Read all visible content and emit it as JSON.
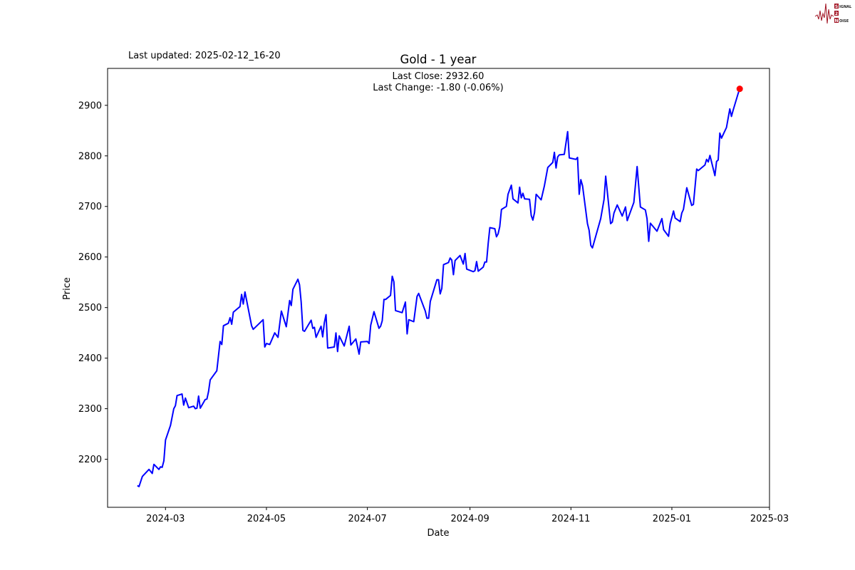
{
  "header": {
    "last_updated": "Last updated: 2025-02-12_16-20",
    "logo_text": "Signal 2 Noise"
  },
  "chart_data": {
    "type": "line",
    "title": "Gold - 1 year",
    "xlabel": "Date",
    "ylabel": "Price",
    "annotations": [
      "Last Close: 2932.60",
      "Last Change: -1.80 (-0.06%)"
    ],
    "xlim": [
      "2024-01-26",
      "2025-03-01"
    ],
    "ylim": [
      2105,
      2973
    ],
    "x_ticks": [
      "2024-03-01",
      "2024-05-01",
      "2024-07-01",
      "2024-09-01",
      "2024-11-01",
      "2025-01-01",
      "2025-03-01"
    ],
    "x_tick_labels": [
      "2024-03",
      "2024-05",
      "2024-07",
      "2024-09",
      "2024-11",
      "2025-01",
      "2025-03"
    ],
    "y_ticks": [
      2200,
      2300,
      2400,
      2500,
      2600,
      2700,
      2800,
      2900
    ],
    "y_tick_labels": [
      "2200",
      "2300",
      "2400",
      "2500",
      "2600",
      "2700",
      "2800",
      "2900"
    ],
    "grid": false,
    "line_color": "#0000ff",
    "marker_color": "#ff0000",
    "last_point": {
      "x": "2025-02-11",
      "y": 2932.6
    },
    "x": [
      "2024-02-13",
      "2024-02-14",
      "2024-02-16",
      "2024-02-20",
      "2024-02-22",
      "2024-02-23",
      "2024-02-26",
      "2024-02-27",
      "2024-02-28",
      "2024-02-29",
      "2024-03-01",
      "2024-03-04",
      "2024-03-06",
      "2024-03-07",
      "2024-03-08",
      "2024-03-11",
      "2024-03-12",
      "2024-03-13",
      "2024-03-15",
      "2024-03-18",
      "2024-03-19",
      "2024-03-20",
      "2024-03-21",
      "2024-03-22",
      "2024-03-25",
      "2024-03-26",
      "2024-03-27",
      "2024-03-28",
      "2024-04-01",
      "2024-04-03",
      "2024-04-04",
      "2024-04-05",
      "2024-04-08",
      "2024-04-09",
      "2024-04-10",
      "2024-04-11",
      "2024-04-15",
      "2024-04-16",
      "2024-04-17",
      "2024-04-18",
      "2024-04-22",
      "2024-04-23",
      "2024-04-29",
      "2024-04-30",
      "2024-05-01",
      "2024-05-03",
      "2024-05-06",
      "2024-05-08",
      "2024-05-10",
      "2024-05-13",
      "2024-05-15",
      "2024-05-16",
      "2024-05-17",
      "2024-05-20",
      "2024-05-21",
      "2024-05-22",
      "2024-05-23",
      "2024-05-24",
      "2024-05-28",
      "2024-05-29",
      "2024-05-30",
      "2024-05-31",
      "2024-06-03",
      "2024-06-04",
      "2024-06-05",
      "2024-06-06",
      "2024-06-07",
      "2024-06-11",
      "2024-06-12",
      "2024-06-13",
      "2024-06-14",
      "2024-06-17",
      "2024-06-20",
      "2024-06-21",
      "2024-06-24",
      "2024-06-26",
      "2024-06-27",
      "2024-07-01",
      "2024-07-02",
      "2024-07-03",
      "2024-07-05",
      "2024-07-08",
      "2024-07-09",
      "2024-07-10",
      "2024-07-11",
      "2024-07-12",
      "2024-07-15",
      "2024-07-16",
      "2024-07-17",
      "2024-07-18",
      "2024-07-22",
      "2024-07-24",
      "2024-07-25",
      "2024-07-26",
      "2024-07-29",
      "2024-07-31",
      "2024-08-01",
      "2024-08-05",
      "2024-08-06",
      "2024-08-07",
      "2024-08-08",
      "2024-08-12",
      "2024-08-13",
      "2024-08-14",
      "2024-08-15",
      "2024-08-16",
      "2024-08-19",
      "2024-08-20",
      "2024-08-21",
      "2024-08-22",
      "2024-08-23",
      "2024-08-26",
      "2024-08-28",
      "2024-08-29",
      "2024-08-30",
      "2024-09-03",
      "2024-09-04",
      "2024-09-05",
      "2024-09-06",
      "2024-09-09",
      "2024-09-10",
      "2024-09-11",
      "2024-09-12",
      "2024-09-13",
      "2024-09-16",
      "2024-09-17",
      "2024-09-18",
      "2024-09-19",
      "2024-09-20",
      "2024-09-23",
      "2024-09-24",
      "2024-09-26",
      "2024-09-27",
      "2024-09-30",
      "2024-10-01",
      "2024-10-02",
      "2024-10-03",
      "2024-10-04",
      "2024-10-07",
      "2024-10-08",
      "2024-10-09",
      "2024-10-10",
      "2024-10-11",
      "2024-10-14",
      "2024-10-16",
      "2024-10-18",
      "2024-10-21",
      "2024-10-22",
      "2024-10-23",
      "2024-10-24",
      "2024-10-25",
      "2024-10-28",
      "2024-10-30",
      "2024-10-31",
      "2024-11-04",
      "2024-11-05",
      "2024-11-06",
      "2024-11-07",
      "2024-11-08",
      "2024-11-11",
      "2024-11-12",
      "2024-11-13",
      "2024-11-14",
      "2024-11-19",
      "2024-11-21",
      "2024-11-22",
      "2024-11-25",
      "2024-11-26",
      "2024-11-27",
      "2024-11-29",
      "2024-12-02",
      "2024-12-04",
      "2024-12-05",
      "2024-12-09",
      "2024-12-11",
      "2024-12-13",
      "2024-12-16",
      "2024-12-17",
      "2024-12-18",
      "2024-12-19",
      "2024-12-23",
      "2024-12-26",
      "2024-12-27",
      "2024-12-30",
      "2024-12-31",
      "2025-01-02",
      "2025-01-03",
      "2025-01-06",
      "2025-01-07",
      "2025-01-08",
      "2025-01-10",
      "2025-01-13",
      "2025-01-14",
      "2025-01-16",
      "2025-01-17",
      "2025-01-21",
      "2025-01-22",
      "2025-01-23",
      "2025-01-24",
      "2025-01-27",
      "2025-01-28",
      "2025-01-29",
      "2025-01-30",
      "2025-01-31",
      "2025-02-03",
      "2025-02-05",
      "2025-02-06",
      "2025-02-07",
      "2025-02-10",
      "2025-02-11"
    ],
    "y": [
      2148,
      2146,
      2166,
      2180,
      2172,
      2190,
      2180,
      2185,
      2184,
      2197,
      2238,
      2267,
      2300,
      2306,
      2326,
      2329,
      2307,
      2321,
      2302,
      2305,
      2300,
      2301,
      2325,
      2301,
      2318,
      2319,
      2334,
      2357,
      2375,
      2433,
      2427,
      2464,
      2469,
      2480,
      2467,
      2491,
      2502,
      2526,
      2507,
      2531,
      2464,
      2457,
      2476,
      2422,
      2429,
      2427,
      2450,
      2441,
      2493,
      2462,
      2514,
      2504,
      2536,
      2556,
      2545,
      2511,
      2455,
      2453,
      2475,
      2459,
      2461,
      2441,
      2463,
      2442,
      2470,
      2486,
      2420,
      2422,
      2450,
      2413,
      2444,
      2424,
      2463,
      2426,
      2438,
      2408,
      2432,
      2433,
      2429,
      2465,
      2492,
      2459,
      2463,
      2474,
      2516,
      2516,
      2524,
      2562,
      2551,
      2494,
      2490,
      2511,
      2448,
      2476,
      2472,
      2522,
      2528,
      2493,
      2479,
      2479,
      2512,
      2555,
      2555,
      2527,
      2538,
      2585,
      2589,
      2598,
      2594,
      2565,
      2593,
      2603,
      2586,
      2607,
      2576,
      2571,
      2573,
      2591,
      2572,
      2580,
      2590,
      2590,
      2627,
      2658,
      2656,
      2640,
      2646,
      2660,
      2694,
      2700,
      2724,
      2742,
      2715,
      2707,
      2738,
      2717,
      2726,
      2715,
      2714,
      2682,
      2673,
      2688,
      2724,
      2713,
      2741,
      2777,
      2787,
      2807,
      2776,
      2798,
      2802,
      2803,
      2848,
      2796,
      2793,
      2797,
      2724,
      2753,
      2741,
      2666,
      2653,
      2623,
      2618,
      2676,
      2714,
      2760,
      2666,
      2669,
      2687,
      2703,
      2681,
      2699,
      2672,
      2708,
      2779,
      2699,
      2693,
      2676,
      2631,
      2667,
      2651,
      2676,
      2654,
      2641,
      2666,
      2691,
      2677,
      2670,
      2687,
      2694,
      2737,
      2702,
      2704,
      2774,
      2771,
      2782,
      2793,
      2788,
      2801,
      2761,
      2789,
      2792,
      2845,
      2835,
      2856,
      2893,
      2878,
      2890,
      2923,
      2932.6
    ]
  }
}
